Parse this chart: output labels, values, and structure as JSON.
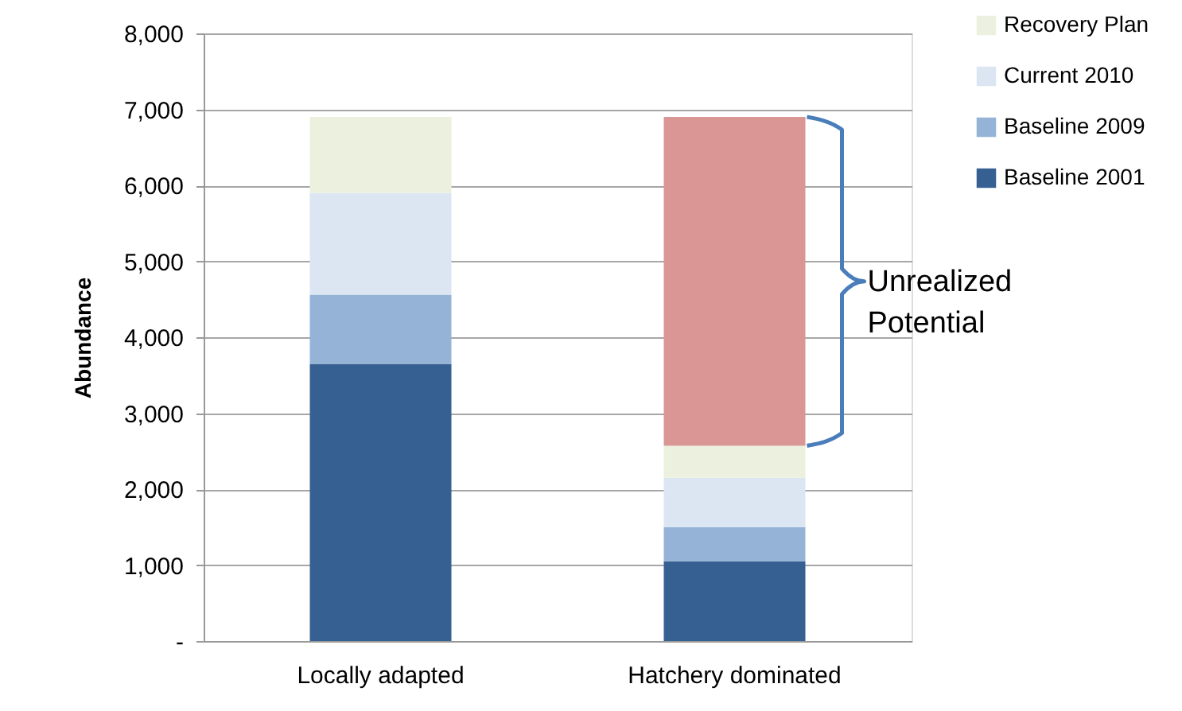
{
  "chart_data": {
    "type": "bar",
    "stacked": true,
    "ylabel": "Abundance",
    "categories": [
      "Locally adapted",
      "Hatchery dominated"
    ],
    "series": [
      {
        "name": "Baseline 2001",
        "color": "#376092",
        "values": [
          3650,
          1050
        ]
      },
      {
        "name": "Baseline 2009",
        "color": "#95b3d7",
        "values": [
          910,
          450
        ]
      },
      {
        "name": "Current 2010",
        "color": "#dce6f2",
        "values": [
          1340,
          650
        ]
      },
      {
        "name": "Recovery Plan",
        "color": "#ebf1de",
        "values": [
          1000,
          420
        ]
      },
      {
        "color": "#d99694",
        "values": [
          null,
          4330
        ]
      }
    ],
    "ylim": [
      0,
      8000
    ],
    "yticks": [
      {
        "value": 0,
        "label": "-"
      },
      {
        "value": 1000,
        "label": "1,000"
      },
      {
        "value": 2000,
        "label": "2,000"
      },
      {
        "value": 3000,
        "label": "3,000"
      },
      {
        "value": 4000,
        "label": "4,000"
      },
      {
        "value": 5000,
        "label": "5,000"
      },
      {
        "value": 6000,
        "label": "6,000"
      },
      {
        "value": 7000,
        "label": "7,000"
      },
      {
        "value": 8000,
        "label": "8,000"
      }
    ],
    "grid": "y",
    "legend": "right",
    "annotations": [
      "Unrealized Potential"
    ]
  }
}
